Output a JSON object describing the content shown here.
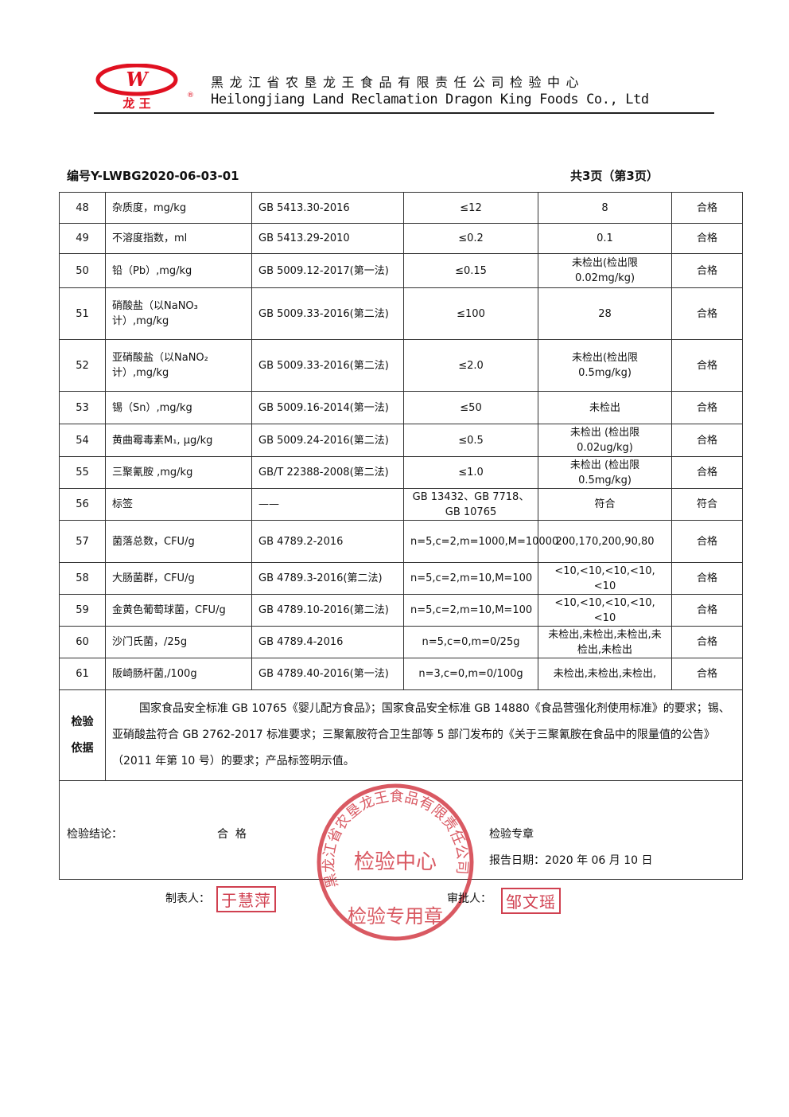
{
  "header": {
    "logo_text": "龙 王",
    "logo_registered": "®",
    "company_cn": "黑龙江省农垦龙王食品有限责任公司检验中心",
    "company_en": "Heilongjiang Land Reclamation Dragon King Foods Co., Ltd",
    "brand_color": "#e01020"
  },
  "doc": {
    "number": "编号Y-LWBG2020-06-03-01",
    "page": "共3页（第3页）"
  },
  "rows": [
    {
      "no": "48",
      "item": "杂质度，mg/kg",
      "method": "GB 5413.30-2016",
      "spec": "≤12",
      "result": "8",
      "verdict": "合格"
    },
    {
      "no": "49",
      "item": "不溶度指数，ml",
      "method": "GB 5413.29-2010",
      "spec": "≤0.2",
      "result": "0.1",
      "verdict": "合格"
    },
    {
      "no": "50",
      "item": "铅（Pb）,mg/kg",
      "method": "GB 5009.12-2017(第一法)",
      "spec": "≤0.15",
      "result": "未检出(检出限 0.02mg/kg)",
      "verdict": "合格"
    },
    {
      "no": "51",
      "item": "硝酸盐（以NaNO₃计）,mg/kg",
      "method": "GB 5009.33-2016(第二法)",
      "spec": "≤100",
      "result": "28",
      "verdict": "合格"
    },
    {
      "no": "52",
      "item": "亚硝酸盐（以NaNO₂计）,mg/kg",
      "method": "GB 5009.33-2016(第二法)",
      "spec": "≤2.0",
      "result": "未检出(检出限 0.5mg/kg)",
      "verdict": "合格"
    },
    {
      "no": "53",
      "item": "锡（Sn）,mg/kg",
      "method": "GB 5009.16-2014(第一法)",
      "spec": "≤50",
      "result": "未检出",
      "verdict": "合格"
    },
    {
      "no": "54",
      "item": "黄曲霉毒素M₁, μg/kg",
      "method": "GB 5009.24-2016(第二法)",
      "spec": "≤0.5",
      "result": "未检出 (检出限 0.02ug/kg)",
      "verdict": "合格"
    },
    {
      "no": "55",
      "item": "三聚氰胺 ,mg/kg",
      "method": "GB/T 22388-2008(第二法)",
      "spec": "≤1.0",
      "result": "未检出  (检出限 0.5mg/kg)",
      "verdict": "合格"
    },
    {
      "no": "56",
      "item": "标签",
      "method": "——",
      "spec": "GB 13432、GB 7718、GB 10765",
      "result": "符合",
      "verdict": "符合"
    },
    {
      "no": "57",
      "item": "菌落总数，CFU/g",
      "method": "GB 4789.2-2016",
      "spec": "n=5,c=2,m=1000,M=10000",
      "result": "200,170,200,90,80",
      "verdict": "合格"
    },
    {
      "no": "58",
      "item": "大肠菌群，CFU/g",
      "method": "GB 4789.3-2016(第二法)",
      "spec": "n=5,c=2,m=10,M=100",
      "result": "<10,<10,<10,<10,<10",
      "verdict": "合格"
    },
    {
      "no": "59",
      "item": "金黄色葡萄球菌，CFU/g",
      "method": "GB 4789.10-2016(第二法)",
      "spec": "n=5,c=2,m=10,M=100",
      "result": "<10,<10,<10,<10,<10",
      "verdict": "合格"
    },
    {
      "no": "60",
      "item": "沙门氏菌，/25g",
      "method": "GB 4789.4-2016",
      "spec": "n=5,c=0,m=0/25g",
      "result": "未检出,未检出,未检出,未检出,未检出",
      "verdict": "合格"
    },
    {
      "no": "61",
      "item": "阪崎肠杆菌,/100g",
      "method": "GB 4789.40-2016(第一法)",
      "spec": "n=3,c=0,m=0/100g",
      "result": "未检出,未检出,未检出,",
      "verdict": "合格"
    }
  ],
  "basis": {
    "label": "检验依据",
    "text": "国家食品安全标准 GB 10765《婴儿配方食品》；国家食品安全标准 GB 14880《食品营强化剂使用标准》的要求；锡、亚硝酸盐符合 GB 2762-2017 标准要求；三聚氰胺符合卫生部等 5 部门发布的《关于三聚氰胺在食品中的限量值的公告》（2011 年第 10 号）的要求；产品标签明示值。"
  },
  "conclusion": {
    "label": "检验结论：",
    "value": "合  格",
    "stamp_label": "检验专章",
    "date": "报告日期：2020 年 06 月 10 日"
  },
  "seal": {
    "ring_text": "黑龙江省农垦龙王食品有限责任公司",
    "center": "检验中心",
    "bottom": "检验专用章",
    "color": "#d0303c"
  },
  "signatures": {
    "preparer_label": "制表人：",
    "preparer": "于慧萍",
    "approver_label": "审批人：",
    "approver": "邹文瑶"
  }
}
